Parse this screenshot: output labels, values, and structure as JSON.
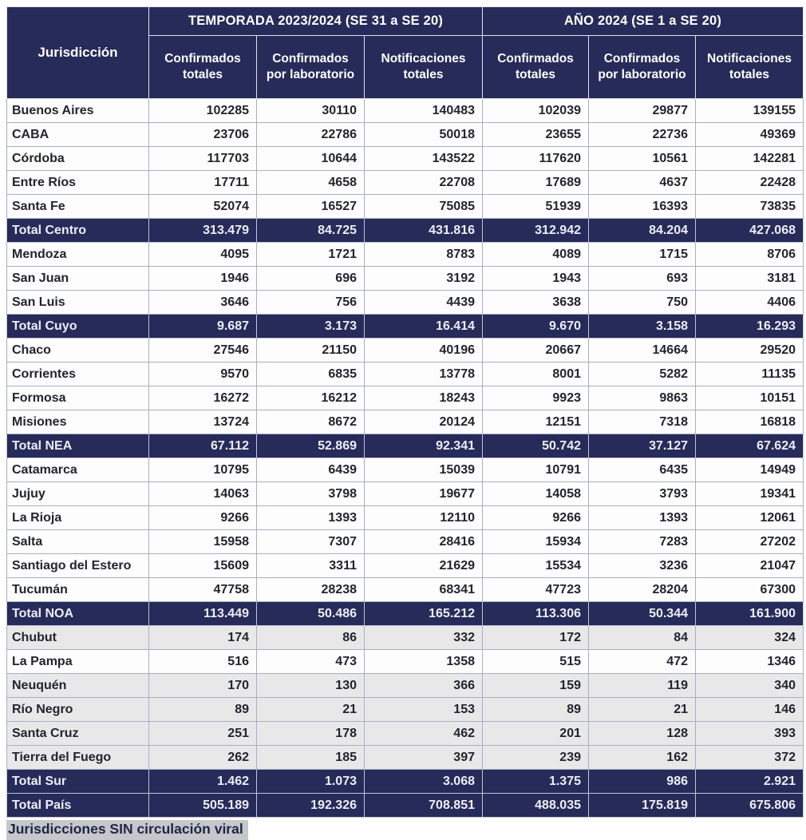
{
  "table": {
    "corner_header": "Jurisdicción",
    "groups": [
      {
        "label": "TEMPORADA 2023/2024 (SE 31 a SE 20)"
      },
      {
        "label": "AÑO 2024 (SE 1 a SE 20)"
      }
    ],
    "sub_headers": [
      "Confirmados totales",
      "Confirmados por laboratorio",
      "Notificaciones totales",
      "Confirmados totales",
      "Confirmados por laboratorio",
      "Notificaciones totales"
    ]
  },
  "chart_data": {
    "type": "table",
    "columns": [
      "Jurisdicción",
      "TEMPORADA 2023/2024 Confirmados totales",
      "TEMPORADA 2023/2024 Confirmados por laboratorio",
      "TEMPORADA 2023/2024 Notificaciones totales",
      "AÑO 2024 Confirmados totales",
      "AÑO 2024 Confirmados por laboratorio",
      "AÑO 2024 Notificaciones totales"
    ],
    "rows": [
      {
        "label": "Buenos Aires",
        "values": [
          "102285",
          "30110",
          "140483",
          "102039",
          "29877",
          "139155"
        ],
        "style": "plain"
      },
      {
        "label": "CABA",
        "values": [
          "23706",
          "22786",
          "50018",
          "23655",
          "22736",
          "49369"
        ],
        "style": "plain"
      },
      {
        "label": "Córdoba",
        "values": [
          "117703",
          "10644",
          "143522",
          "117620",
          "10561",
          "142281"
        ],
        "style": "plain"
      },
      {
        "label": "Entre Ríos",
        "values": [
          "17711",
          "4658",
          "22708",
          "17689",
          "4637",
          "22428"
        ],
        "style": "plain"
      },
      {
        "label": "Santa Fe",
        "values": [
          "52074",
          "16527",
          "75085",
          "51939",
          "16393",
          "73835"
        ],
        "style": "plain"
      },
      {
        "label": "Total Centro",
        "values": [
          "313.479",
          "84.725",
          "431.816",
          "312.942",
          "84.204",
          "427.068"
        ],
        "style": "total"
      },
      {
        "label": "Mendoza",
        "values": [
          "4095",
          "1721",
          "8783",
          "4089",
          "1715",
          "8706"
        ],
        "style": "plain"
      },
      {
        "label": "San Juan",
        "values": [
          "1946",
          "696",
          "3192",
          "1943",
          "693",
          "3181"
        ],
        "style": "plain"
      },
      {
        "label": "San Luis",
        "values": [
          "3646",
          "756",
          "4439",
          "3638",
          "750",
          "4406"
        ],
        "style": "plain"
      },
      {
        "label": "Total Cuyo",
        "values": [
          "9.687",
          "3.173",
          "16.414",
          "9.670",
          "3.158",
          "16.293"
        ],
        "style": "total"
      },
      {
        "label": "Chaco",
        "values": [
          "27546",
          "21150",
          "40196",
          "20667",
          "14664",
          "29520"
        ],
        "style": "plain"
      },
      {
        "label": "Corrientes",
        "values": [
          "9570",
          "6835",
          "13778",
          "8001",
          "5282",
          "11135"
        ],
        "style": "plain"
      },
      {
        "label": "Formosa",
        "values": [
          "16272",
          "16212",
          "18243",
          "9923",
          "9863",
          "10151"
        ],
        "style": "plain"
      },
      {
        "label": "Misiones",
        "values": [
          "13724",
          "8672",
          "20124",
          "12151",
          "7318",
          "16818"
        ],
        "style": "plain"
      },
      {
        "label": "Total NEA",
        "values": [
          "67.112",
          "52.869",
          "92.341",
          "50.742",
          "37.127",
          "67.624"
        ],
        "style": "total"
      },
      {
        "label": "Catamarca",
        "values": [
          "10795",
          "6439",
          "15039",
          "10791",
          "6435",
          "14949"
        ],
        "style": "plain"
      },
      {
        "label": "Jujuy",
        "values": [
          "14063",
          "3798",
          "19677",
          "14058",
          "3793",
          "19341"
        ],
        "style": "plain"
      },
      {
        "label": "La Rioja",
        "values": [
          "9266",
          "1393",
          "12110",
          "9266",
          "1393",
          "12061"
        ],
        "style": "plain"
      },
      {
        "label": "Salta",
        "values": [
          "15958",
          "7307",
          "28416",
          "15934",
          "7283",
          "27202"
        ],
        "style": "plain"
      },
      {
        "label": "Santiago del Estero",
        "values": [
          "15609",
          "3311",
          "21629",
          "15534",
          "3236",
          "21047"
        ],
        "style": "plain"
      },
      {
        "label": "Tucumán",
        "values": [
          "47758",
          "28238",
          "68341",
          "47723",
          "28204",
          "67300"
        ],
        "style": "plain"
      },
      {
        "label": "Total NOA",
        "values": [
          "113.449",
          "50.486",
          "165.212",
          "113.306",
          "50.344",
          "161.900"
        ],
        "style": "total"
      },
      {
        "label": "Chubut",
        "values": [
          "174",
          "86",
          "332",
          "172",
          "84",
          "324"
        ],
        "style": "shaded"
      },
      {
        "label": "La Pampa",
        "values": [
          "516",
          "473",
          "1358",
          "515",
          "472",
          "1346"
        ],
        "style": "plain"
      },
      {
        "label": "Neuquén",
        "values": [
          "170",
          "130",
          "366",
          "159",
          "119",
          "340"
        ],
        "style": "shaded"
      },
      {
        "label": "Río Negro",
        "values": [
          "89",
          "21",
          "153",
          "89",
          "21",
          "146"
        ],
        "style": "shaded"
      },
      {
        "label": "Santa Cruz",
        "values": [
          "251",
          "178",
          "462",
          "201",
          "128",
          "393"
        ],
        "style": "shaded"
      },
      {
        "label": "Tierra del Fuego",
        "values": [
          "262",
          "185",
          "397",
          "239",
          "162",
          "372"
        ],
        "style": "shaded"
      },
      {
        "label": "Total Sur",
        "values": [
          "1.462",
          "1.073",
          "3.068",
          "1.375",
          "986",
          "2.921"
        ],
        "style": "total"
      },
      {
        "label": "Total País",
        "values": [
          "505.189",
          "192.326",
          "708.851",
          "488.035",
          "175.819",
          "675.806"
        ],
        "style": "total"
      }
    ]
  },
  "footer": {
    "note": "Jurisdicciones SIN circulación viral"
  },
  "colors": {
    "header_navy": "#262b59",
    "total_row_navy": "#262b59",
    "shaded_row_gray": "#e8e8e9",
    "body_border": "#a9aec2",
    "footer_highlight": "#c6c7cb",
    "body_text": "#23242f"
  }
}
